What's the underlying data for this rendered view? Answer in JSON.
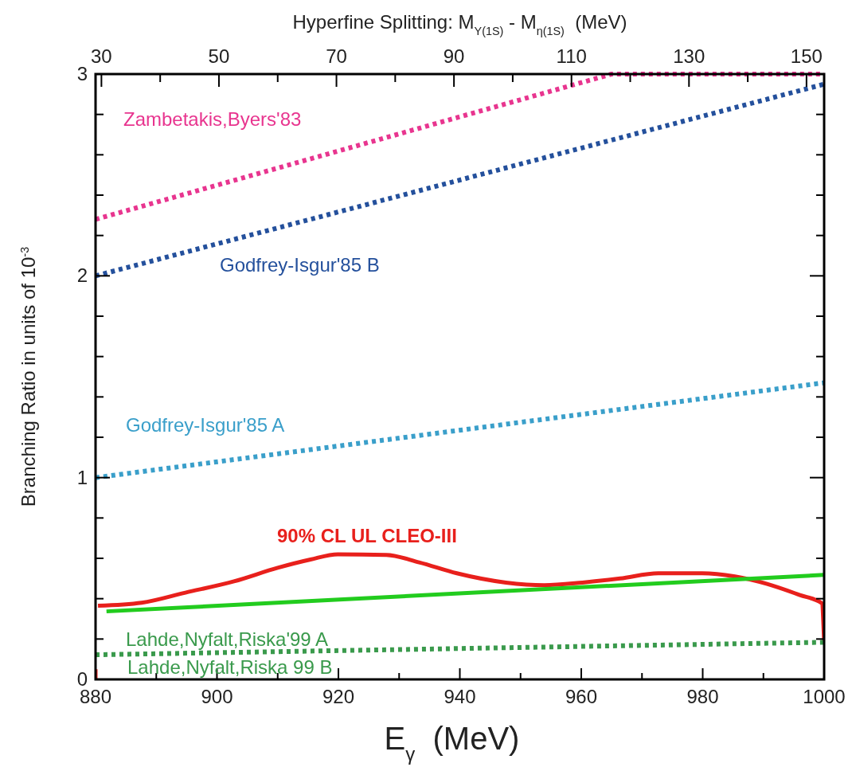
{
  "chart_data": {
    "type": "line",
    "xlabel": "E$_{γ}$  (MeV)",
    "ylabel": "Branching Ratio in units of 10$^{-3}$",
    "x2label": "Hyperfine Splitting: M$_{Υ(1S)}$ - M$_{η(1S)}$  (MeV)",
    "xlim": [
      880,
      1000
    ],
    "xticks": [
      880,
      {
        "value": 890,
        "label": null
      },
      900,
      {
        "value": 910,
        "label": null
      },
      920,
      {
        "value": 930,
        "label": null
      },
      940,
      {
        "value": 950,
        "label": null
      },
      960,
      {
        "value": 970,
        "label": null
      },
      980,
      {
        "value": 990,
        "label": null
      },
      1000
    ],
    "ylim": [
      0,
      3
    ],
    "yticks": [
      0,
      {
        "value": 0.2,
        "label": null
      },
      {
        "value": 0.4,
        "label": null
      },
      {
        "value": 0.6,
        "label": null
      },
      {
        "value": 0.8,
        "label": null
      },
      1,
      {
        "value": 1.2,
        "label": null
      },
      {
        "value": 1.4,
        "label": null
      },
      {
        "value": 1.6,
        "label": null
      },
      {
        "value": 1.8,
        "label": null
      },
      2,
      {
        "value": 2.2,
        "label": null
      },
      {
        "value": 2.4,
        "label": null
      },
      {
        "value": 2.6,
        "label": null
      },
      {
        "value": 2.8,
        "label": null
      },
      3
    ],
    "x2lim": [
      29,
      153
    ],
    "x2ticks": [
      30,
      {
        "value": 40,
        "label": null
      },
      50,
      {
        "value": 60,
        "label": null
      },
      70,
      {
        "value": 80,
        "label": null
      },
      90,
      {
        "value": 100,
        "label": null
      },
      110,
      {
        "value": 120,
        "label": null
      },
      130,
      {
        "value": 140,
        "label": null
      },
      150
    ],
    "grid": false,
    "series": [
      {
        "name": "Zambetakis,Byers'83",
        "color": "#e8358f",
        "line_style": "dotted",
        "x": [
          880,
          965,
          1000
        ],
        "values": [
          2.28,
          3,
          3
        ]
      },
      {
        "name": "Godfrey-Isgur'85 B",
        "color": "#24509c",
        "line_style": "dotted",
        "x": [
          880,
          1000
        ],
        "values": [
          2.0,
          2.95
        ]
      },
      {
        "name": "Godfrey-Isgur'85 A",
        "color": "#3a9fca",
        "line_style": "dotted",
        "x": [
          880,
          1000
        ],
        "values": [
          1.0,
          1.47
        ]
      },
      {
        "name": "90% CL UL CLEO-III",
        "color": "#e8201c",
        "line_style": "solid",
        "x": [
          880,
          880,
          880.2,
          880.4,
          887.6,
          894.8,
          902.8,
          910.0,
          915.4,
          919.9,
          927.9,
          933.3,
          939.5,
          947.6,
          953.9,
          960.2,
          966.4,
          972.7,
          979.9,
          985.3,
          990.6,
          996.0,
          999.6,
          1000
        ],
        "values": [
          0.0,
          0.05,
          null,
          0.365,
          0.38,
          0.43,
          0.486,
          0.553,
          0.594,
          0.62,
          0.617,
          0.58,
          0.526,
          0.48,
          0.467,
          0.48,
          0.5,
          0.526,
          0.526,
          0.51,
          0.473,
          0.418,
          0.378,
          0.19
        ]
      },
      {
        "color": "#22cc1e",
        "line_style": "solid",
        "x": [
          881.8,
          1000
        ],
        "values": [
          0.337,
          0.518
        ]
      },
      {
        "name": "Lahde,Nyfalt,Riska'99 A",
        "color": "#3a9a4c",
        "line_style": "dotted",
        "x": [
          880,
          1000
        ],
        "values": [
          0.122,
          0.184
        ]
      }
    ],
    "annotations": [
      "Lahde,Nyfalt,Riska 99 B"
    ]
  }
}
